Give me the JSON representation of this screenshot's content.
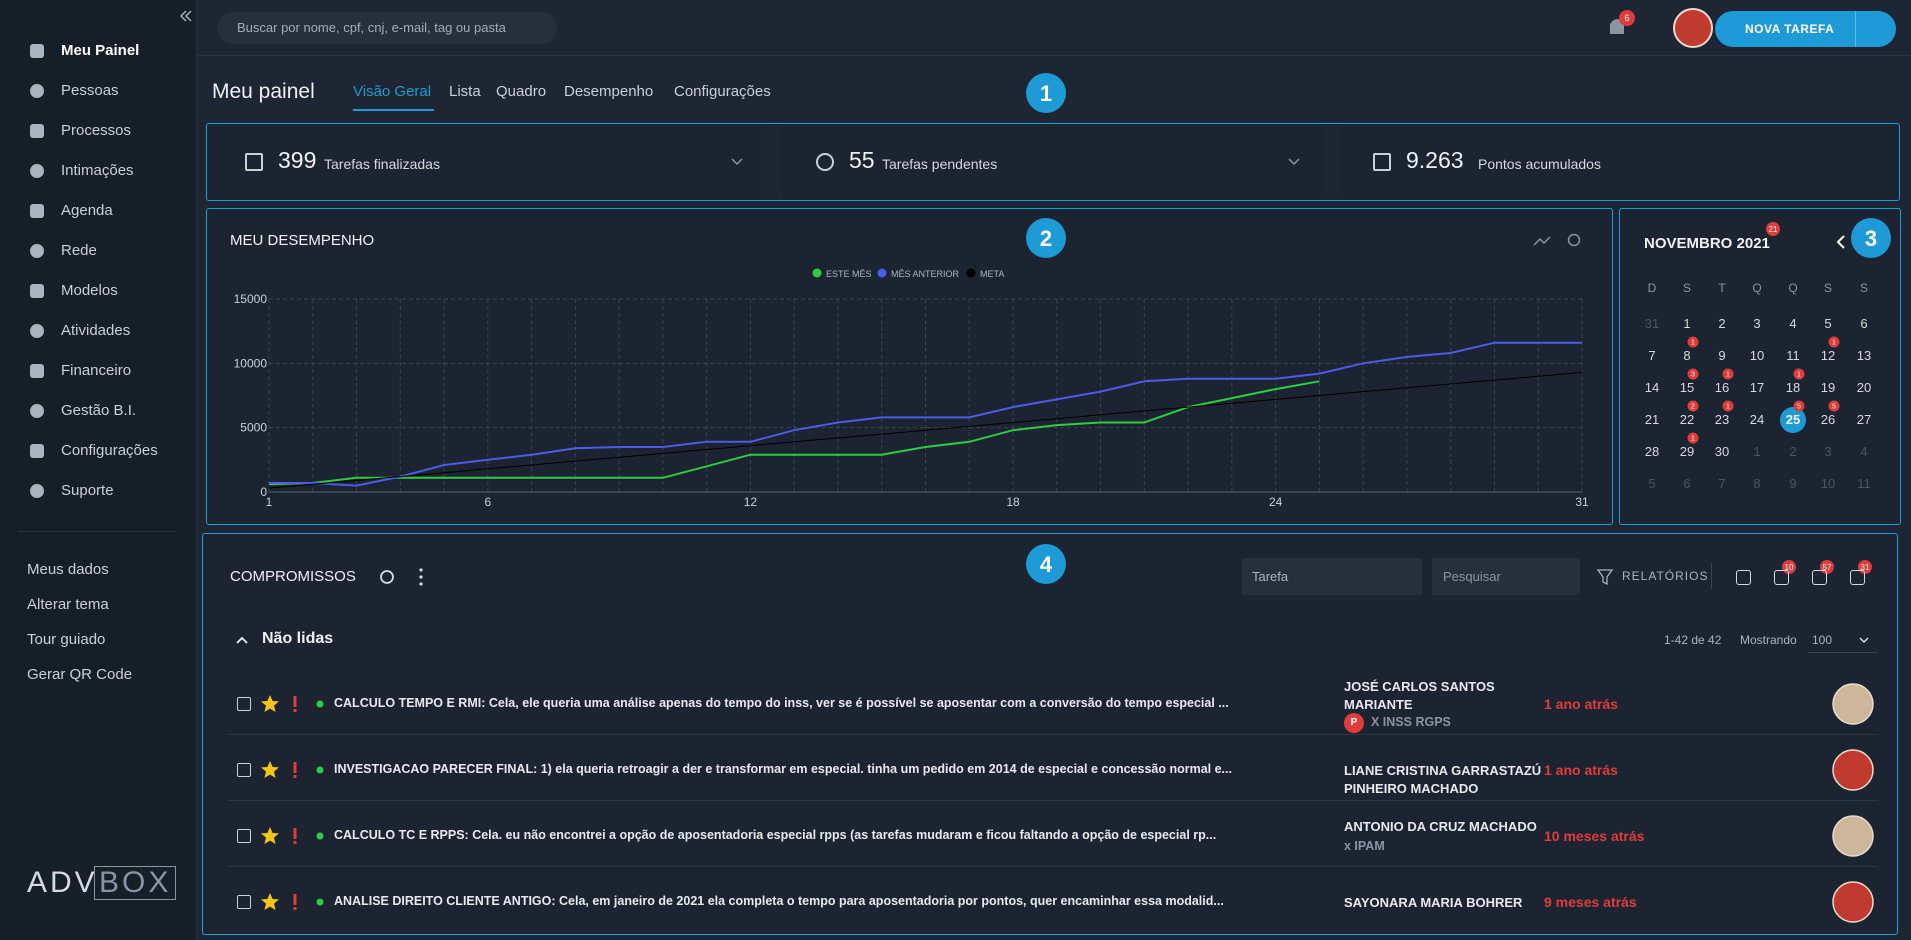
{
  "sidebar": {
    "menu": [
      "Meu Painel",
      "Pessoas",
      "Processos",
      "Intimações",
      "Agenda",
      "Rede",
      "Modelos",
      "Atividades",
      "Financeiro",
      "Gestão B.I.",
      "Configurações",
      "Suporte"
    ],
    "links": [
      "Meus dados",
      "Alterar tema",
      "Tour guiado",
      "Gerar QR Code"
    ],
    "logo": [
      "ADV",
      "BOX"
    ]
  },
  "header": {
    "search_placeholder": "Buscar por nome, cpf, cnj, e-mail, tag ou pasta",
    "notification_count": 6,
    "new_task_button": "NOVA TAREFA"
  },
  "page": {
    "title": "Meu painel",
    "tabs": [
      "Visão Geral",
      "Lista",
      "Quadro",
      "Desempenho",
      "Configurações"
    ],
    "active_tab": 0
  },
  "callouts": [
    1,
    2,
    3,
    4
  ],
  "stats": [
    {
      "value": "399",
      "label": "Tarefas finalizadas"
    },
    {
      "value": "55",
      "label": "Tarefas pendentes"
    },
    {
      "value": "9.263",
      "label": "Pontos acumulados"
    }
  ],
  "chart_data": {
    "type": "line",
    "title": "MEU DESEMPENHO",
    "x": [
      1,
      2,
      3,
      4,
      5,
      6,
      7,
      8,
      9,
      10,
      11,
      12,
      13,
      14,
      15,
      16,
      17,
      18,
      19,
      20,
      21,
      22,
      23,
      24,
      25,
      26,
      27,
      28,
      29,
      30,
      31
    ],
    "series": [
      {
        "name": "ESTE MÊS",
        "color": "#2ecc40",
        "values": [
          600,
          700,
          1100,
          1100,
          1100,
          1100,
          1100,
          1100,
          1100,
          1100,
          2000,
          2900,
          2900,
          2900,
          2900,
          3500,
          3900,
          4800,
          5200,
          5400,
          5400,
          6600,
          7300,
          8000,
          8600,
          null,
          null,
          null,
          null,
          null,
          null
        ]
      },
      {
        "name": "MÊS ANTERIOR",
        "color": "#4a5ce8",
        "values": [
          700,
          700,
          500,
          1200,
          2100,
          2500,
          2900,
          3400,
          3500,
          3500,
          3900,
          3900,
          4800,
          5400,
          5800,
          5800,
          5800,
          6600,
          7200,
          7800,
          8600,
          8800,
          8800,
          8800,
          9200,
          10000,
          10500,
          10800,
          11600,
          11600,
          11600
        ]
      },
      {
        "name": "META",
        "color": "#000000",
        "values": [
          300,
          600,
          900,
          1200,
          1500,
          1800,
          2100,
          2400,
          2700,
          3000,
          3300,
          3600,
          3900,
          4200,
          4500,
          4800,
          5100,
          5400,
          5700,
          6000,
          6300,
          6600,
          6900,
          7200,
          7500,
          7800,
          8100,
          8400,
          8700,
          9000,
          9300
        ]
      }
    ],
    "xlim": [
      1,
      31
    ],
    "ylim": [
      0,
      15000
    ],
    "xticks": [
      1,
      6,
      12,
      18,
      24,
      31
    ],
    "yticks": [
      0,
      5000,
      10000,
      15000
    ],
    "grid": true
  },
  "calendar": {
    "title": "NOVEMBRO 2021",
    "badge": 21,
    "weekdays": [
      "D",
      "S",
      "T",
      "Q",
      "Q",
      "S",
      "S"
    ],
    "weeks": [
      [
        {
          "day": 31,
          "other_month": true
        },
        {
          "day": 1
        },
        {
          "day": 2
        },
        {
          "day": 3
        },
        {
          "day": 4
        },
        {
          "day": 5
        },
        {
          "day": 6
        }
      ],
      [
        {
          "day": 7
        },
        {
          "day": 8,
          "badge": 1
        },
        {
          "day": 9
        },
        {
          "day": 10
        },
        {
          "day": 11
        },
        {
          "day": 12,
          "badge": 1
        },
        {
          "day": 13
        }
      ],
      [
        {
          "day": 14
        },
        {
          "day": 15,
          "badge": 3
        },
        {
          "day": 16,
          "badge": 1
        },
        {
          "day": 17
        },
        {
          "day": 18,
          "badge": 1
        },
        {
          "day": 19
        },
        {
          "day": 20
        }
      ],
      [
        {
          "day": 21
        },
        {
          "day": 22,
          "badge": 2
        },
        {
          "day": 23,
          "badge": 1
        },
        {
          "day": 24
        },
        {
          "day": 25,
          "badge": 5,
          "today": true
        },
        {
          "day": 26,
          "badge": 5
        },
        {
          "day": 27
        }
      ],
      [
        {
          "day": 28
        },
        {
          "day": 29,
          "badge": 1
        },
        {
          "day": 30
        },
        {
          "day": 1,
          "other_month": true
        },
        {
          "day": 2,
          "other_month": true
        },
        {
          "day": 3,
          "other_month": true
        },
        {
          "day": 4,
          "other_month": true
        }
      ],
      [
        {
          "day": 5,
          "other_month": true
        },
        {
          "day": 6,
          "other_month": true
        },
        {
          "day": 7,
          "other_month": true
        },
        {
          "day": 8,
          "other_month": true
        },
        {
          "day": 9,
          "other_month": true
        },
        {
          "day": 10,
          "other_month": true
        },
        {
          "day": 11,
          "other_month": true
        }
      ]
    ]
  },
  "appointments": {
    "title": "COMPROMISSOS",
    "filter": "Tarefa",
    "search_placeholder": "Pesquisar",
    "reports": "RELATÓRIOS",
    "icon_badges": [
      10,
      57,
      31
    ],
    "group": "Não lidas",
    "range": "1-42 de 42",
    "showing_label": "Mostrando",
    "page_size": "100",
    "rows": [
      {
        "text": "CALCULO TEMPO E RMI: Cela, ele queria uma análise apenas do tempo do inss, ver se é possível se aposentar com a conversão do tempo especial ...",
        "client": "JOSÉ CARLOS SANTOS MARIANTE",
        "tag": "P",
        "process": "X INSS RGPS",
        "time": "1 ano atrás"
      },
      {
        "text": "INVESTIGACAO PARECER FINAL: 1) ela queria retroagir a der e transformar em especial. tinha um pedido em 2014 de especial e concessão normal e...",
        "client": "LIANE CRISTINA GARRASTAZÚ PINHEIRO MACHADO",
        "time": "1 ano atrás"
      },
      {
        "text": "CALCULO TC E RPPS: Cela. eu não encontrei a opção de aposentadoria especial rpps (as tarefas mudaram e ficou faltando a opção de especial rp...",
        "client": "ANTONIO DA CRUZ MACHADO",
        "process": "x IPAM",
        "time": "10 meses atrás"
      },
      {
        "text": "ANALISE DIREITO CLIENTE ANTIGO: Cela, em janeiro de 2021 ela completa o tempo para aposentadoria por pontos, quer encaminhar essa modalid...",
        "client": "SAYONARA MARIA BOHRER",
        "time": "9 meses atrás"
      }
    ]
  }
}
